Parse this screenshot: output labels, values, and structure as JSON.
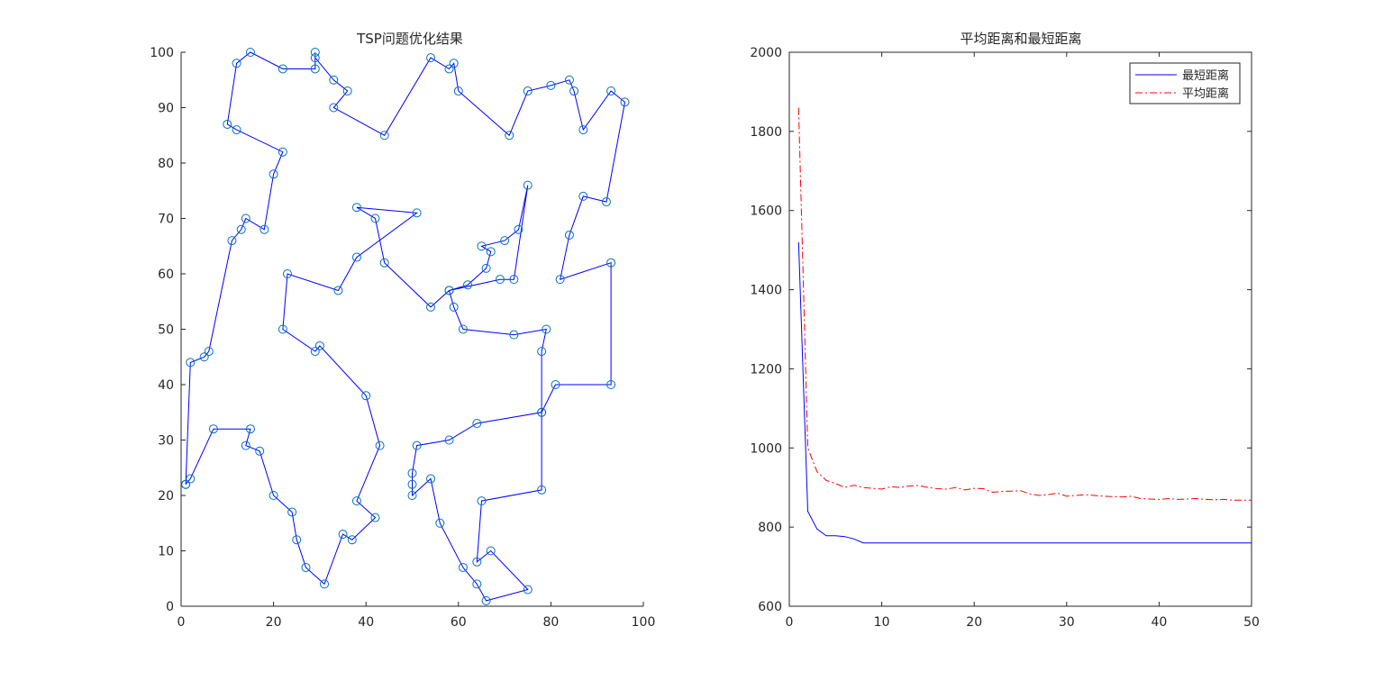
{
  "window": {
    "background": "#ffffff"
  },
  "chart_data": [
    {
      "type": "scatter",
      "title": "TSP问题优化结果",
      "xlabel": "",
      "ylabel": "",
      "xlim": [
        0,
        100
      ],
      "ylim": [
        0,
        100
      ],
      "xticks": [
        0,
        20,
        40,
        60,
        80,
        100
      ],
      "yticks": [
        0,
        10,
        20,
        30,
        40,
        50,
        60,
        70,
        80,
        90,
        100
      ],
      "grid": false,
      "line_color": "#0000ff",
      "marker": "circle",
      "marker_color": "#0072bd",
      "route": [
        [
          1,
          22
        ],
        [
          2,
          23
        ],
        [
          7,
          32
        ],
        [
          15,
          32
        ],
        [
          14,
          29
        ],
        [
          17,
          28
        ],
        [
          20,
          20
        ],
        [
          24,
          17
        ],
        [
          25,
          12
        ],
        [
          27,
          7
        ],
        [
          31,
          4
        ],
        [
          35,
          13
        ],
        [
          37,
          12
        ],
        [
          42,
          16
        ],
        [
          38,
          19
        ],
        [
          43,
          29
        ],
        [
          40,
          38
        ],
        [
          30,
          47
        ],
        [
          29,
          46
        ],
        [
          22,
          50
        ],
        [
          23,
          60
        ],
        [
          34,
          57
        ],
        [
          38,
          63
        ],
        [
          51,
          71
        ],
        [
          38,
          72
        ],
        [
          42,
          70
        ],
        [
          44,
          62
        ],
        [
          54,
          54
        ],
        [
          58,
          57
        ],
        [
          62,
          58
        ],
        [
          66,
          61
        ],
        [
          67,
          64
        ],
        [
          65,
          65
        ],
        [
          70,
          66
        ],
        [
          73,
          68
        ],
        [
          75,
          76
        ],
        [
          72,
          59
        ],
        [
          69,
          59
        ],
        [
          58,
          57
        ],
        [
          59,
          54
        ],
        [
          61,
          50
        ],
        [
          72,
          49
        ],
        [
          79,
          50
        ],
        [
          78,
          46
        ],
        [
          78,
          35
        ],
        [
          64,
          33
        ],
        [
          58,
          30
        ],
        [
          51,
          29
        ],
        [
          50,
          24
        ],
        [
          50,
          22
        ],
        [
          50,
          20
        ],
        [
          54,
          23
        ],
        [
          56,
          15
        ],
        [
          61,
          7
        ],
        [
          64,
          4
        ],
        [
          66,
          1
        ],
        [
          75,
          3
        ],
        [
          67,
          10
        ],
        [
          64,
          8
        ],
        [
          65,
          19
        ],
        [
          78,
          21
        ],
        [
          78,
          35
        ],
        [
          81,
          40
        ],
        [
          93,
          40
        ],
        [
          93,
          62
        ],
        [
          82,
          59
        ],
        [
          84,
          67
        ],
        [
          87,
          74
        ],
        [
          92,
          73
        ],
        [
          96,
          91
        ],
        [
          93,
          93
        ],
        [
          87,
          86
        ],
        [
          85,
          93
        ],
        [
          84,
          95
        ],
        [
          80,
          94
        ],
        [
          75,
          93
        ],
        [
          71,
          85
        ],
        [
          60,
          93
        ],
        [
          59,
          98
        ],
        [
          58,
          97
        ],
        [
          54,
          99
        ],
        [
          44,
          85
        ],
        [
          33,
          90
        ],
        [
          36,
          93
        ],
        [
          33,
          95
        ],
        [
          29,
          99
        ],
        [
          29,
          100
        ],
        [
          29,
          97
        ],
        [
          22,
          97
        ],
        [
          15,
          100
        ],
        [
          12,
          98
        ],
        [
          10,
          87
        ],
        [
          12,
          86
        ],
        [
          22,
          82
        ],
        [
          20,
          78
        ],
        [
          18,
          68
        ],
        [
          14,
          70
        ],
        [
          13,
          68
        ],
        [
          11,
          66
        ],
        [
          6,
          46
        ],
        [
          5,
          45
        ],
        [
          2,
          44
        ],
        [
          1,
          22
        ]
      ]
    },
    {
      "type": "line",
      "title": "平均距离和最短距离",
      "xlabel": "",
      "ylabel": "",
      "xlim": [
        0,
        50
      ],
      "ylim": [
        600,
        2000
      ],
      "xticks": [
        0,
        10,
        20,
        30,
        40,
        50
      ],
      "yticks": [
        600,
        800,
        1000,
        1200,
        1400,
        1600,
        1800,
        2000
      ],
      "grid": false,
      "legend_position": "top-right",
      "series": [
        {
          "name": "最短距离",
          "color": "#0000ff",
          "style": "solid",
          "x": [
            1,
            2,
            3,
            4,
            5,
            6,
            7,
            8,
            9,
            10,
            15,
            20,
            25,
            30,
            35,
            40,
            45,
            50
          ],
          "y": [
            1520,
            840,
            795,
            778,
            778,
            776,
            770,
            760,
            760,
            760,
            760,
            760,
            760,
            760,
            760,
            760,
            760,
            760
          ]
        },
        {
          "name": "平均距离",
          "color": "#ff0000",
          "style": "dashdot",
          "x": [
            1,
            2,
            3,
            4,
            5,
            6,
            7,
            8,
            9,
            10,
            11,
            12,
            13,
            14,
            15,
            16,
            17,
            18,
            19,
            20,
            21,
            22,
            23,
            24,
            25,
            26,
            27,
            28,
            29,
            30,
            31,
            32,
            33,
            34,
            35,
            36,
            37,
            38,
            39,
            40,
            41,
            42,
            43,
            44,
            45,
            46,
            47,
            48,
            49,
            50
          ],
          "y": [
            1860,
            1000,
            940,
            918,
            910,
            900,
            906,
            900,
            898,
            896,
            902,
            900,
            904,
            905,
            900,
            897,
            896,
            900,
            894,
            898,
            897,
            888,
            890,
            891,
            892,
            884,
            880,
            882,
            886,
            878,
            880,
            882,
            880,
            878,
            877,
            876,
            878,
            872,
            871,
            870,
            872,
            870,
            871,
            872,
            870,
            869,
            870,
            868,
            868,
            868
          ]
        }
      ]
    }
  ]
}
